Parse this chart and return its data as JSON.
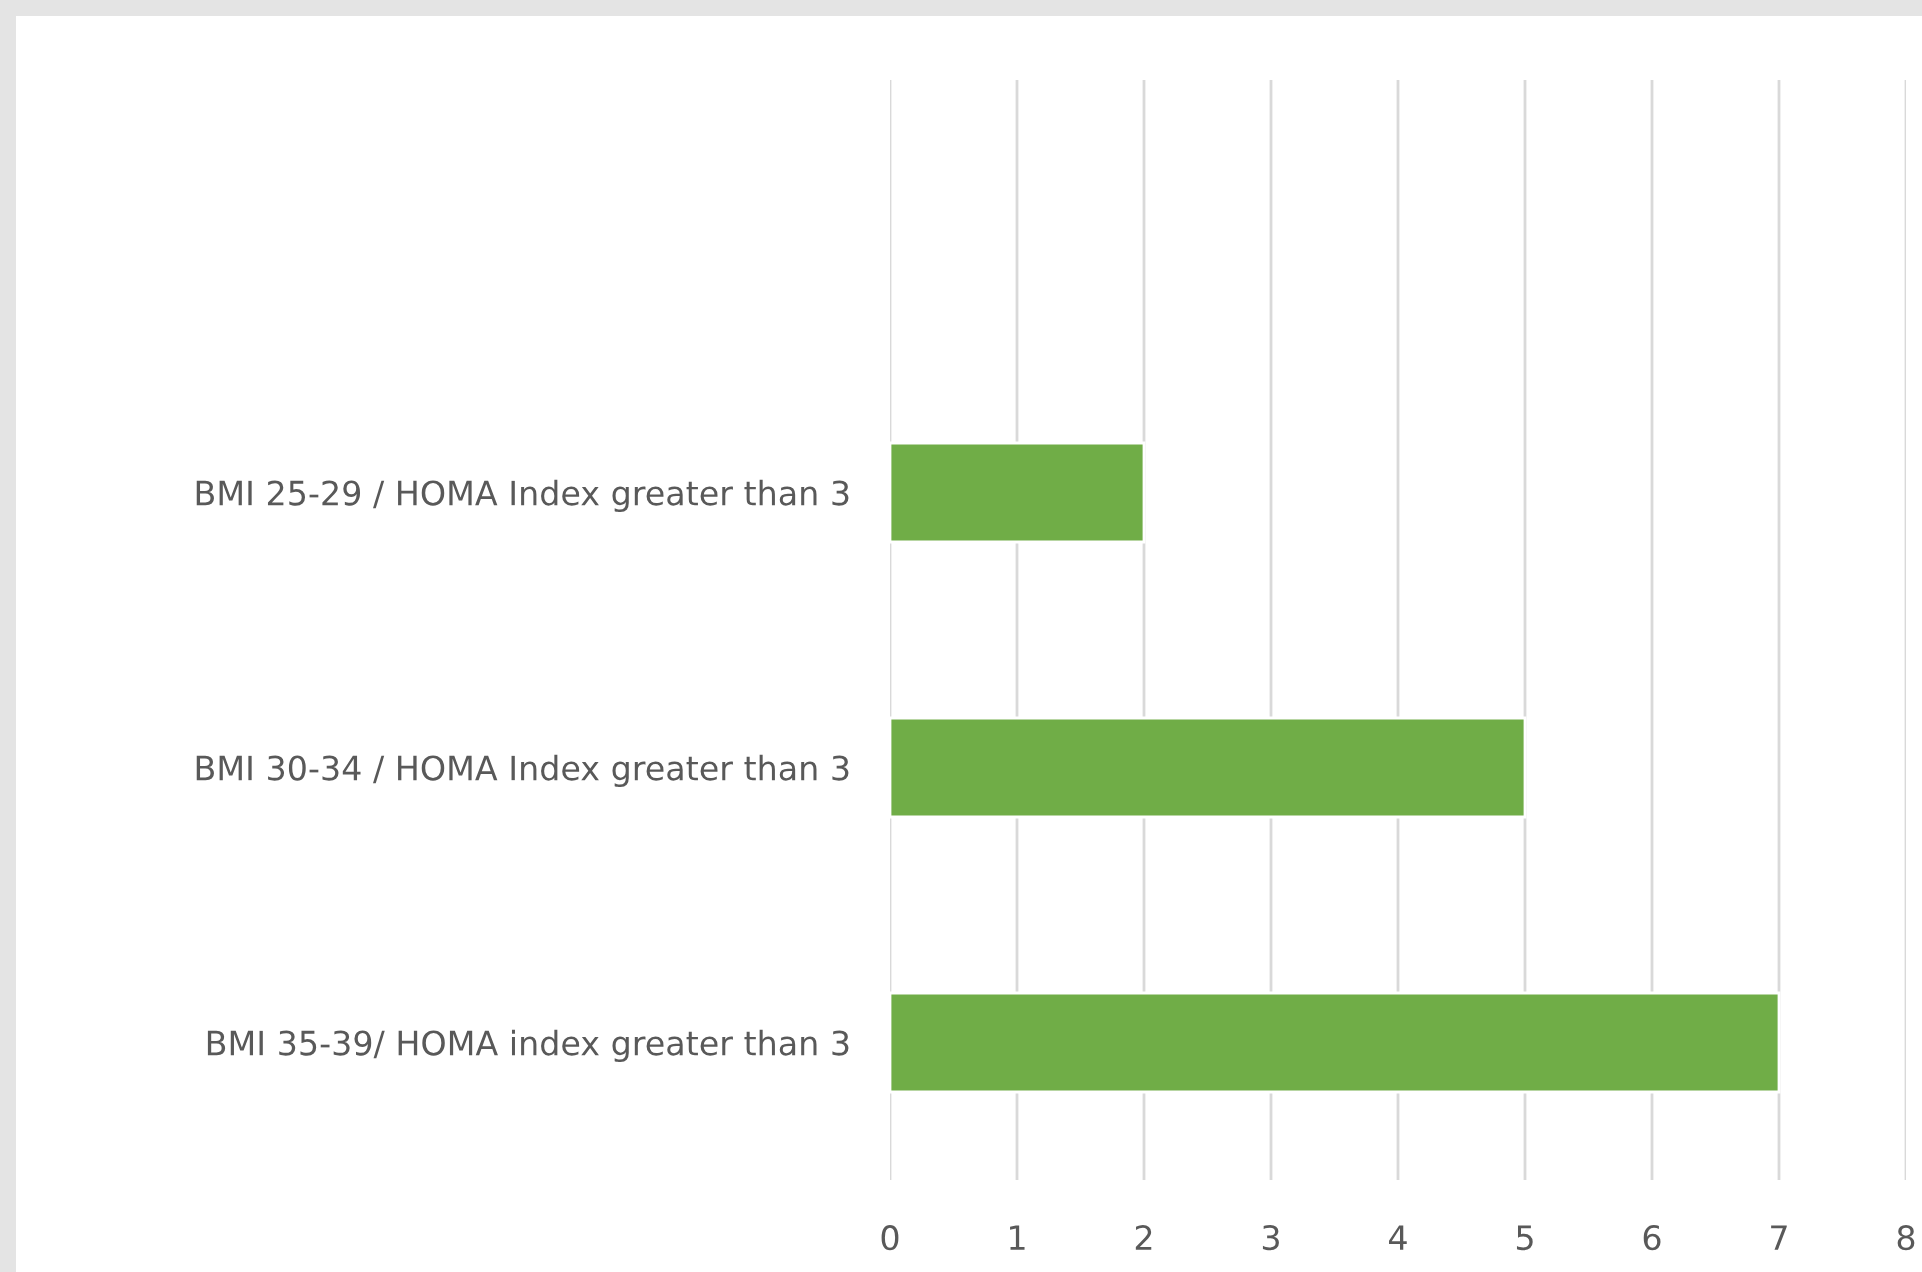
{
  "chart_data": {
    "type": "bar",
    "orientation": "horizontal",
    "categories": [
      null,
      "BMI 25-29 / HOMA Index greater than 3",
      "BMI 30-34 / HOMA Index greater than 3",
      "BMI 35-39/ HOMA index greater than 3"
    ],
    "values": [
      null,
      2,
      5,
      7
    ],
    "color": "#70ad47",
    "xlim": [
      0,
      8
    ],
    "xticks": [
      0,
      1,
      2,
      3,
      4,
      5,
      6,
      7,
      8
    ],
    "grid": "x",
    "legend": false
  }
}
